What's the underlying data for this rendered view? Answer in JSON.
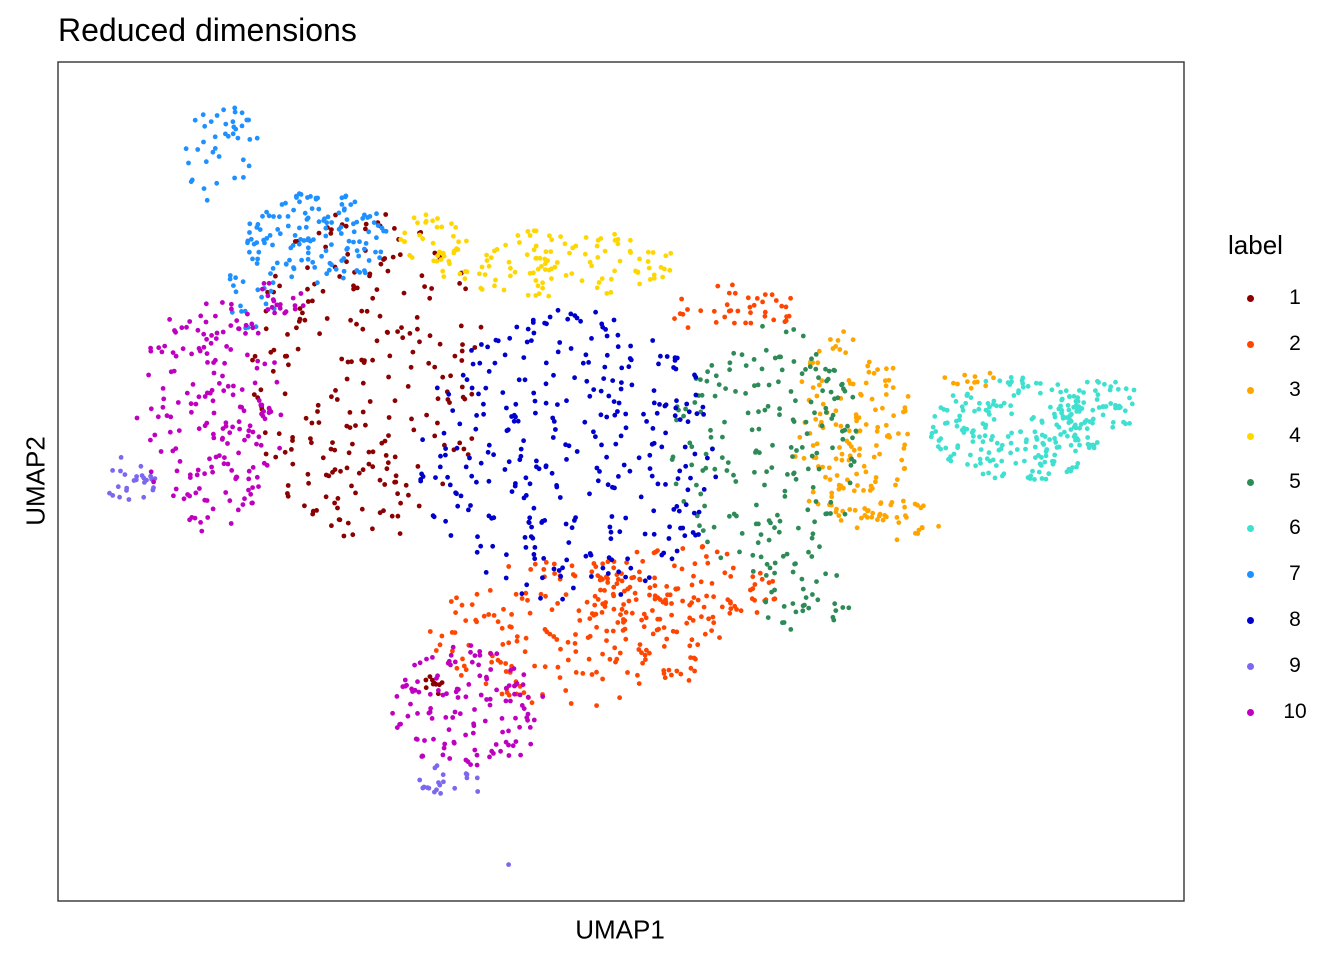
{
  "chart_data": {
    "type": "scatter",
    "title": "Reduced dimensions",
    "xlabel": "UMAP1",
    "ylabel": "UMAP2",
    "xlim": [
      0,
      10
    ],
    "ylim": [
      0,
      10
    ],
    "grid": false,
    "legend": {
      "title": "label",
      "position": "right"
    },
    "series": [
      {
        "name": "1",
        "color": "#8B0000",
        "regions": [
          {
            "cx": 2.75,
            "cy": 6.3,
            "rx": 1.05,
            "ry": 2.0,
            "n": 240
          },
          {
            "cx": 3.35,
            "cy": 2.6,
            "rx": 0.1,
            "ry": 0.15,
            "n": 10
          }
        ]
      },
      {
        "name": "2",
        "color": "#FF4500",
        "regions": [
          {
            "cx": 4.6,
            "cy": 3.2,
            "rx": 1.3,
            "ry": 0.9,
            "n": 200
          },
          {
            "cx": 5.5,
            "cy": 3.7,
            "rx": 0.9,
            "ry": 0.55,
            "n": 110
          },
          {
            "cx": 6.0,
            "cy": 7.05,
            "rx": 0.6,
            "ry": 0.3,
            "n": 40
          }
        ]
      },
      {
        "name": "3",
        "color": "#FFA500",
        "regions": [
          {
            "cx": 7.05,
            "cy": 5.6,
            "rx": 0.55,
            "ry": 1.2,
            "n": 150
          },
          {
            "cx": 7.45,
            "cy": 4.5,
            "rx": 0.4,
            "ry": 0.3,
            "n": 25
          },
          {
            "cx": 8.1,
            "cy": 6.2,
            "rx": 0.25,
            "ry": 0.15,
            "n": 12
          }
        ]
      },
      {
        "name": "4",
        "color": "#FFD700",
        "regions": [
          {
            "cx": 4.4,
            "cy": 7.6,
            "rx": 1.1,
            "ry": 0.4,
            "n": 120
          },
          {
            "cx": 3.3,
            "cy": 7.9,
            "rx": 0.3,
            "ry": 0.3,
            "n": 30
          }
        ]
      },
      {
        "name": "5",
        "color": "#2E8B57",
        "regions": [
          {
            "cx": 6.3,
            "cy": 5.4,
            "rx": 0.85,
            "ry": 1.5,
            "n": 190
          },
          {
            "cx": 6.6,
            "cy": 3.6,
            "rx": 0.45,
            "ry": 0.4,
            "n": 30
          }
        ]
      },
      {
        "name": "6",
        "color": "#40E0D0",
        "regions": [
          {
            "cx": 8.5,
            "cy": 5.6,
            "rx": 0.75,
            "ry": 0.65,
            "n": 210
          },
          {
            "cx": 9.25,
            "cy": 5.9,
            "rx": 0.45,
            "ry": 0.3,
            "n": 60
          }
        ]
      },
      {
        "name": "7",
        "color": "#1E90FF",
        "regions": [
          {
            "cx": 2.3,
            "cy": 7.9,
            "rx": 0.65,
            "ry": 0.55,
            "n": 140
          },
          {
            "cx": 1.45,
            "cy": 8.9,
            "rx": 0.35,
            "ry": 0.6,
            "n": 40
          },
          {
            "cx": 1.7,
            "cy": 7.2,
            "rx": 0.25,
            "ry": 0.4,
            "n": 20
          }
        ]
      },
      {
        "name": "8",
        "color": "#0000CD",
        "regions": [
          {
            "cx": 4.55,
            "cy": 5.3,
            "rx": 1.35,
            "ry": 1.75,
            "n": 320
          }
        ]
      },
      {
        "name": "9",
        "color": "#7B68EE",
        "regions": [
          {
            "cx": 0.65,
            "cy": 5.05,
            "rx": 0.25,
            "ry": 0.3,
            "n": 25
          },
          {
            "cx": 3.5,
            "cy": 1.45,
            "rx": 0.35,
            "ry": 0.2,
            "n": 20
          },
          {
            "cx": 4.0,
            "cy": 0.45,
            "rx": 0.02,
            "ry": 0.02,
            "n": 1
          }
        ]
      },
      {
        "name": "10",
        "color": "#C000C0",
        "regions": [
          {
            "cx": 1.35,
            "cy": 5.8,
            "rx": 0.65,
            "ry": 1.4,
            "n": 190
          },
          {
            "cx": 3.65,
            "cy": 2.3,
            "rx": 0.7,
            "ry": 0.75,
            "n": 130
          },
          {
            "cx": 1.9,
            "cy": 7.15,
            "rx": 0.3,
            "ry": 0.25,
            "n": 20
          }
        ]
      }
    ]
  }
}
